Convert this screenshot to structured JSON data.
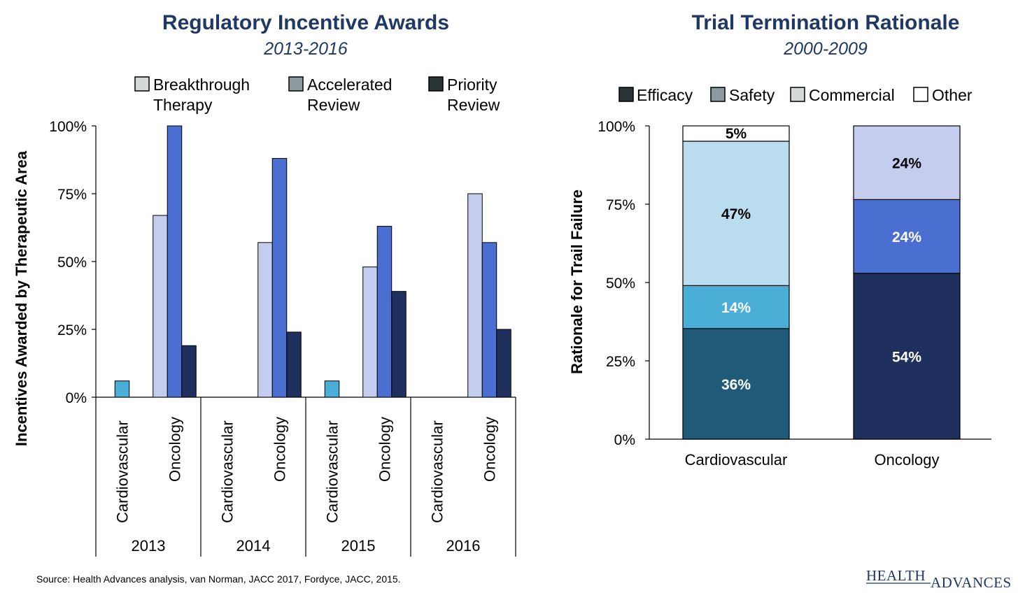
{
  "colors": {
    "breakthrough": "#c5cdee",
    "accelerated": "#4a6fd0",
    "priority": "#1f2f5e",
    "cardio_bar": "#4aaed6",
    "efficacy_cv": "#1f5a78",
    "safety_cv": "#4aaed6",
    "commercial_cv": "#b9dcee",
    "other": "#ffffff",
    "efficacy_onc": "#1f2f5e",
    "safety_onc": "#4a6fd0",
    "commercial_onc": "#c5cdee",
    "title": "#1f3864"
  },
  "left": {
    "title": "Regulatory Incentive Awards",
    "subtitle": "2013-2016",
    "legend": [
      {
        "line1": "Breakthrough",
        "line2": "Therapy",
        "swatch": "#d4dad9"
      },
      {
        "line1": "Accelerated",
        "line2": "Review",
        "swatch": "#8c9ba0"
      },
      {
        "line1": "Priority",
        "line2": "Review",
        "swatch": "#2b3438"
      }
    ],
    "ylabel": "Incentives Awarded by Therapeutic Area",
    "yticks": [
      "0%",
      "25%",
      "50%",
      "75%",
      "100%"
    ]
  },
  "right": {
    "title": "Trial Termination Rationale",
    "subtitle": "2000-2009",
    "legend": [
      {
        "label": "Efficacy",
        "swatch": "#2b3438"
      },
      {
        "label": "Safety",
        "swatch": "#8c9ba0"
      },
      {
        "label": "Commercial",
        "swatch": "#d4dad9"
      },
      {
        "label": "Other",
        "swatch": "#ffffff"
      }
    ],
    "ylabel": "Rationale for Trail Failure",
    "yticks": [
      "0%",
      "25%",
      "50%",
      "75%",
      "100%"
    ]
  },
  "chart_data": [
    {
      "type": "bar",
      "title": "Regulatory Incentive Awards",
      "subtitle": "2013-2016",
      "ylabel": "Incentives Awarded by Therapeutic Area",
      "ylim": [
        0,
        100
      ],
      "groups": [
        "2013",
        "2014",
        "2015",
        "2016"
      ],
      "categories": [
        "Cardiovascular",
        "Oncology"
      ],
      "series": [
        {
          "name": "Breakthrough Therapy",
          "values": {
            "Cardiovascular": [
              0,
              0,
              0,
              0
            ],
            "Oncology": [
              67,
              57,
              48,
              75
            ]
          }
        },
        {
          "name": "Accelerated Review",
          "values": {
            "Cardiovascular": [
              6,
              0,
              6,
              0
            ],
            "Oncology": [
              100,
              88,
              63,
              57
            ]
          }
        },
        {
          "name": "Priority Review",
          "values": {
            "Cardiovascular": [
              0,
              0,
              0,
              0
            ],
            "Oncology": [
              19,
              24,
              39,
              25
            ]
          }
        }
      ],
      "grid": false,
      "legend": "top"
    },
    {
      "type": "bar",
      "stacked": true,
      "title": "Trial Termination Rationale",
      "subtitle": "2000-2009",
      "ylabel": "Rationale for Trail Failure",
      "ylim": [
        0,
        100
      ],
      "categories": [
        "Cardiovascular",
        "Oncology"
      ],
      "series": [
        {
          "name": "Efficacy",
          "values": [
            36,
            54
          ],
          "labels": [
            "36%",
            "54%"
          ]
        },
        {
          "name": "Safety",
          "values": [
            14,
            24
          ],
          "labels": [
            "14%",
            "24%"
          ]
        },
        {
          "name": "Commercial",
          "values": [
            47,
            24
          ],
          "labels": [
            "47%",
            "24%"
          ]
        },
        {
          "name": "Other",
          "values": [
            5,
            0
          ],
          "labels": [
            "5%",
            ""
          ]
        }
      ],
      "grid": false,
      "legend": "top"
    }
  ],
  "footer": {
    "source": "Source:  Health Advances analysis, van Norman, JACC 2017, Fordyce, JACC, 2015.",
    "logo_left": "HEALTH",
    "logo_right": "ADVANCES"
  }
}
